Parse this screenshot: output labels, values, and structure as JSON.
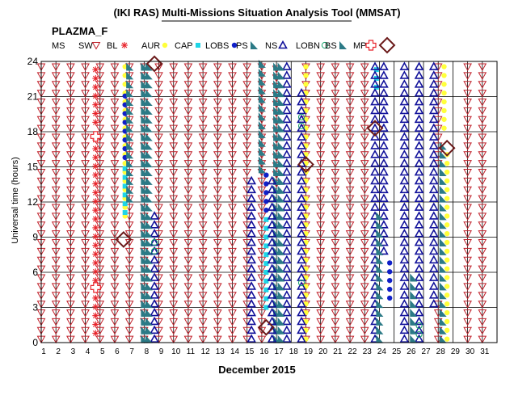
{
  "chart_data": {
    "type": "scatter",
    "title": "(IKI RAS) Multi-Missions Situation Analysis Tool (MMSAT)",
    "subtitle": "PLAZMA_F",
    "xlabel": "December 2015",
    "ylabel": "Universal time (hours)",
    "xlim": [
      1,
      32
    ],
    "ylim": [
      0,
      24
    ],
    "x_ticks": [
      1,
      2,
      3,
      4,
      5,
      6,
      7,
      8,
      9,
      10,
      11,
      12,
      13,
      14,
      15,
      16,
      17,
      18,
      19,
      20,
      21,
      22,
      23,
      24,
      25,
      26,
      27,
      28,
      29,
      30,
      31
    ],
    "y_ticks": [
      0,
      3,
      6,
      9,
      12,
      15,
      18,
      21,
      24
    ],
    "grid": true,
    "legend_position": "top",
    "legend": [
      {
        "key": "MS",
        "label": "MS",
        "marker": "none",
        "color": "#000000"
      },
      {
        "key": "SW",
        "label": "SW",
        "marker": "triangle-down",
        "color": "#c0202a"
      },
      {
        "key": "BL",
        "label": "BL",
        "marker": "asterisk",
        "color": "#e8232a"
      },
      {
        "key": "AUR",
        "label": "AUR",
        "marker": "circle",
        "color": "#ffff3a"
      },
      {
        "key": "CAP",
        "label": "CAP",
        "marker": "square",
        "color": "#1ed5e6"
      },
      {
        "key": "LOBS",
        "label": "LOBS",
        "marker": "circle",
        "color": "#1020c8"
      },
      {
        "key": "PS",
        "label": "PS",
        "marker": "flag",
        "color": "#2b7a86"
      },
      {
        "key": "NS",
        "label": "NS",
        "marker": "triangle-up",
        "color": "#10109a"
      },
      {
        "key": "LOBN",
        "label": "LOBN",
        "marker": "open-circle",
        "color": "#14a06a"
      },
      {
        "key": "BS",
        "label": "BS",
        "marker": "flag",
        "color": "#2b7a86"
      },
      {
        "key": "MP",
        "label": "MP",
        "marker": "cross",
        "color": "#e8232a"
      },
      {
        "key": "MPX",
        "label": "",
        "marker": "diamond",
        "color": "#6b1a1a"
      }
    ],
    "series": [
      {
        "name": "SW",
        "marker": "triangle-down",
        "color": "#c0202a",
        "points": [
          [
            1,
            0,
            24
          ],
          [
            2,
            0,
            24
          ],
          [
            3,
            0,
            24
          ],
          [
            4,
            0,
            24
          ],
          [
            5,
            0,
            24
          ],
          [
            6,
            0,
            24
          ],
          [
            7,
            0,
            24
          ],
          [
            8,
            0,
            24
          ],
          [
            9,
            0,
            24
          ],
          [
            10,
            0,
            24
          ],
          [
            11,
            0,
            24
          ],
          [
            12,
            0,
            24
          ],
          [
            13,
            0,
            24
          ],
          [
            14,
            0,
            24
          ],
          [
            15,
            0,
            24
          ],
          [
            16,
            0,
            24
          ],
          [
            17,
            13.3,
            24
          ],
          [
            19,
            0,
            24
          ],
          [
            20,
            0,
            24
          ],
          [
            21,
            0,
            24
          ],
          [
            22,
            0,
            24
          ],
          [
            23,
            0,
            24
          ],
          [
            28,
            0,
            3.4
          ],
          [
            28,
            15,
            24
          ],
          [
            30,
            0,
            24
          ],
          [
            31,
            0,
            24
          ]
        ]
      },
      {
        "name": "BL",
        "marker": "asterisk",
        "color": "#e8232a",
        "points": [
          [
            4.7,
            0.5,
            4.3
          ],
          [
            4.7,
            5,
            17.3
          ],
          [
            4.7,
            18.5,
            24
          ]
        ]
      },
      {
        "name": "MP",
        "marker": "cross",
        "color": "#e8232a",
        "points": [
          [
            4.7,
            4.7
          ],
          [
            4.7,
            17.6
          ]
        ]
      },
      {
        "name": "AUR",
        "marker": "circle",
        "color": "#ffff3a",
        "points": [
          [
            6.7,
            10.5,
            24
          ],
          [
            19,
            0,
            24
          ],
          [
            28.6,
            0,
            16.5
          ],
          [
            28.4,
            18,
            24
          ]
        ]
      },
      {
        "name": "CAP",
        "marker": "square",
        "color": "#1ed5e6",
        "points": [
          [
            6.7,
            10.8,
            15.5
          ],
          [
            16.3,
            2.7,
            10.9
          ],
          [
            23.8,
            21.5,
            24
          ]
        ]
      },
      {
        "name": "LOBS",
        "marker": "circle",
        "color": "#1020c8",
        "points": [
          [
            6.7,
            15.5,
            21.2
          ],
          [
            16.3,
            11,
            14.3
          ],
          [
            24.7,
            3.5,
            7.3
          ]
        ]
      },
      {
        "name": "PS",
        "marker": "flag",
        "color": "#2b7a86",
        "points": [
          [
            7,
            12,
            24
          ],
          [
            8,
            0,
            24
          ],
          [
            16,
            14.5,
            24
          ],
          [
            17,
            0,
            24
          ]
        ]
      },
      {
        "name": "NS",
        "marker": "triangle-up",
        "color": "#10109a",
        "points": [
          [
            8.7,
            0,
            11.5
          ],
          [
            15.3,
            0,
            14.5
          ],
          [
            16.7,
            0,
            14
          ],
          [
            17.7,
            0,
            24
          ],
          [
            18.7,
            0,
            21.5
          ],
          [
            23.7,
            0,
            24
          ],
          [
            24.3,
            7.5,
            24
          ],
          [
            25.7,
            0,
            24
          ],
          [
            26.7,
            0,
            24
          ],
          [
            27.7,
            3,
            24
          ]
        ]
      },
      {
        "name": "LOBN",
        "marker": "open-circle",
        "color": "#14a06a",
        "points": [
          [
            8.7,
            7.5,
            8.6
          ],
          [
            18.7,
            4.8,
            5.8
          ],
          [
            18.7,
            18.2,
            19.5
          ],
          [
            26.7,
            0.4,
            1.7
          ]
        ]
      },
      {
        "name": "BS",
        "marker": "flag",
        "color": "#2b7a86",
        "points": [
          [
            8.3,
            0,
            24
          ],
          [
            17.3,
            0,
            24
          ],
          [
            24,
            0,
            11
          ],
          [
            28.3,
            0,
            17.3
          ],
          [
            26.3,
            0,
            6.2
          ]
        ]
      },
      {
        "name": "MPX",
        "marker": "diamond",
        "color": "#6b1a1a",
        "points": [
          [
            6.6,
            8.8
          ],
          [
            8.7,
            23.8
          ],
          [
            16.3,
            1.3
          ],
          [
            19,
            15.2
          ],
          [
            23.7,
            18.3
          ],
          [
            28.6,
            16.6
          ]
        ]
      }
    ]
  }
}
